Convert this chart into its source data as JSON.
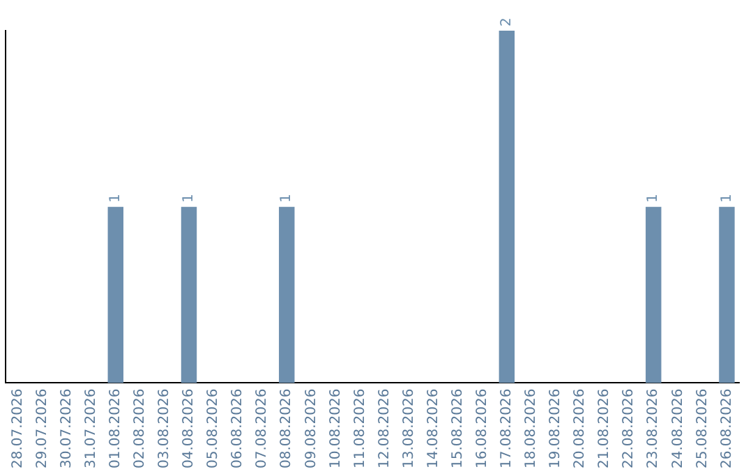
{
  "chart_data": {
    "type": "bar",
    "categories": [
      "28.07.2026",
      "29.07.2026",
      "30.07.2026",
      "31.07.2026",
      "01.08.2026",
      "02.08.2026",
      "03.08.2026",
      "04.08.2026",
      "05.08.2026",
      "06.08.2026",
      "07.08.2026",
      "08.08.2026",
      "09.08.2026",
      "10.08.2026",
      "11.08.2026",
      "12.08.2026",
      "13.08.2026",
      "14.08.2026",
      "15.08.2026",
      "16.08.2026",
      "17.08.2026",
      "18.08.2026",
      "19.08.2026",
      "20.08.2026",
      "21.08.2026",
      "22.08.2026",
      "23.08.2026",
      "24.08.2026",
      "25.08.2026",
      "26.08.2026"
    ],
    "values": [
      0,
      0,
      0,
      0,
      1,
      0,
      0,
      1,
      0,
      0,
      0,
      1,
      0,
      0,
      0,
      0,
      0,
      0,
      0,
      0,
      2,
      0,
      0,
      0,
      0,
      0,
      1,
      0,
      0,
      1
    ],
    "value_labels": [
      null,
      null,
      null,
      null,
      "1",
      null,
      null,
      "1",
      null,
      null,
      null,
      "1",
      null,
      null,
      null,
      null,
      null,
      null,
      null,
      null,
      "2",
      null,
      null,
      null,
      null,
      null,
      "1",
      null,
      null,
      "1"
    ],
    "color": "#6d8fae",
    "grid": false,
    "legend": false,
    "tick_labels": "x"
  }
}
